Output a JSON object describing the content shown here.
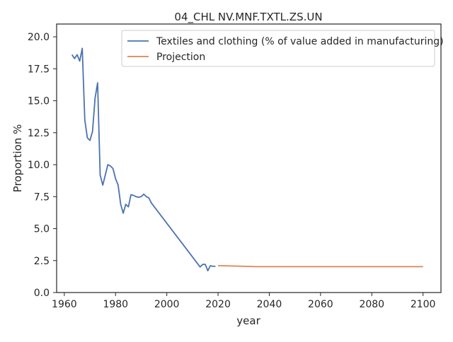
{
  "chart_data": {
    "type": "line",
    "title": "04_CHL NV.MNF.TXTL.ZS.UN",
    "xlabel": "year",
    "ylabel": "Proportion %",
    "xlim": [
      1957,
      2107
    ],
    "ylim": [
      0,
      21
    ],
    "xticks": [
      1960,
      1980,
      2000,
      2020,
      2040,
      2060,
      2080,
      2100
    ],
    "xtick_labels": [
      "1960",
      "1980",
      "2000",
      "2020",
      "2040",
      "2060",
      "2080",
      "2100"
    ],
    "yticks": [
      0,
      2.5,
      5,
      7.5,
      10,
      12.5,
      15,
      17.5,
      20
    ],
    "ytick_labels": [
      "0.0",
      "2.5",
      "5.0",
      "7.5",
      "10.0",
      "12.5",
      "15.0",
      "17.5",
      "20.0"
    ],
    "grid": false,
    "legend_position": "top-right",
    "series": [
      {
        "name": "Textiles and clothing (% of value added in manufacturing)",
        "color": "#4c72b0",
        "x": [
          1963,
          1964,
          1965,
          1966,
          1967,
          1968,
          1969,
          1970,
          1971,
          1972,
          1973,
          1974,
          1975,
          1976,
          1977,
          1978,
          1979,
          1980,
          1981,
          1982,
          1983,
          1984,
          1985,
          1986,
          1987,
          1988,
          1989,
          1990,
          1991,
          1992,
          1993,
          1994,
          2013,
          2014,
          2015,
          2016,
          2017,
          2018,
          2019
        ],
        "y": [
          18.6,
          18.3,
          18.6,
          18.1,
          19.1,
          13.5,
          12.1,
          11.9,
          12.6,
          15.2,
          16.4,
          9.2,
          8.4,
          9.2,
          10.0,
          9.9,
          9.7,
          8.9,
          8.4,
          6.9,
          6.2,
          6.9,
          6.7,
          7.65,
          7.6,
          7.5,
          7.45,
          7.5,
          7.7,
          7.5,
          7.4,
          7.0,
          2.0,
          2.2,
          2.2,
          1.7,
          2.1,
          2.05,
          2.05
        ]
      },
      {
        "name": "Projection",
        "color": "#dd8452",
        "x": [
          2020,
          2025,
          2030,
          2035,
          2040,
          2050,
          2060,
          2070,
          2080,
          2090,
          2100
        ],
        "y": [
          2.1,
          2.08,
          2.05,
          2.02,
          2.02,
          2.02,
          2.02,
          2.02,
          2.02,
          2.02,
          2.02
        ]
      }
    ]
  }
}
